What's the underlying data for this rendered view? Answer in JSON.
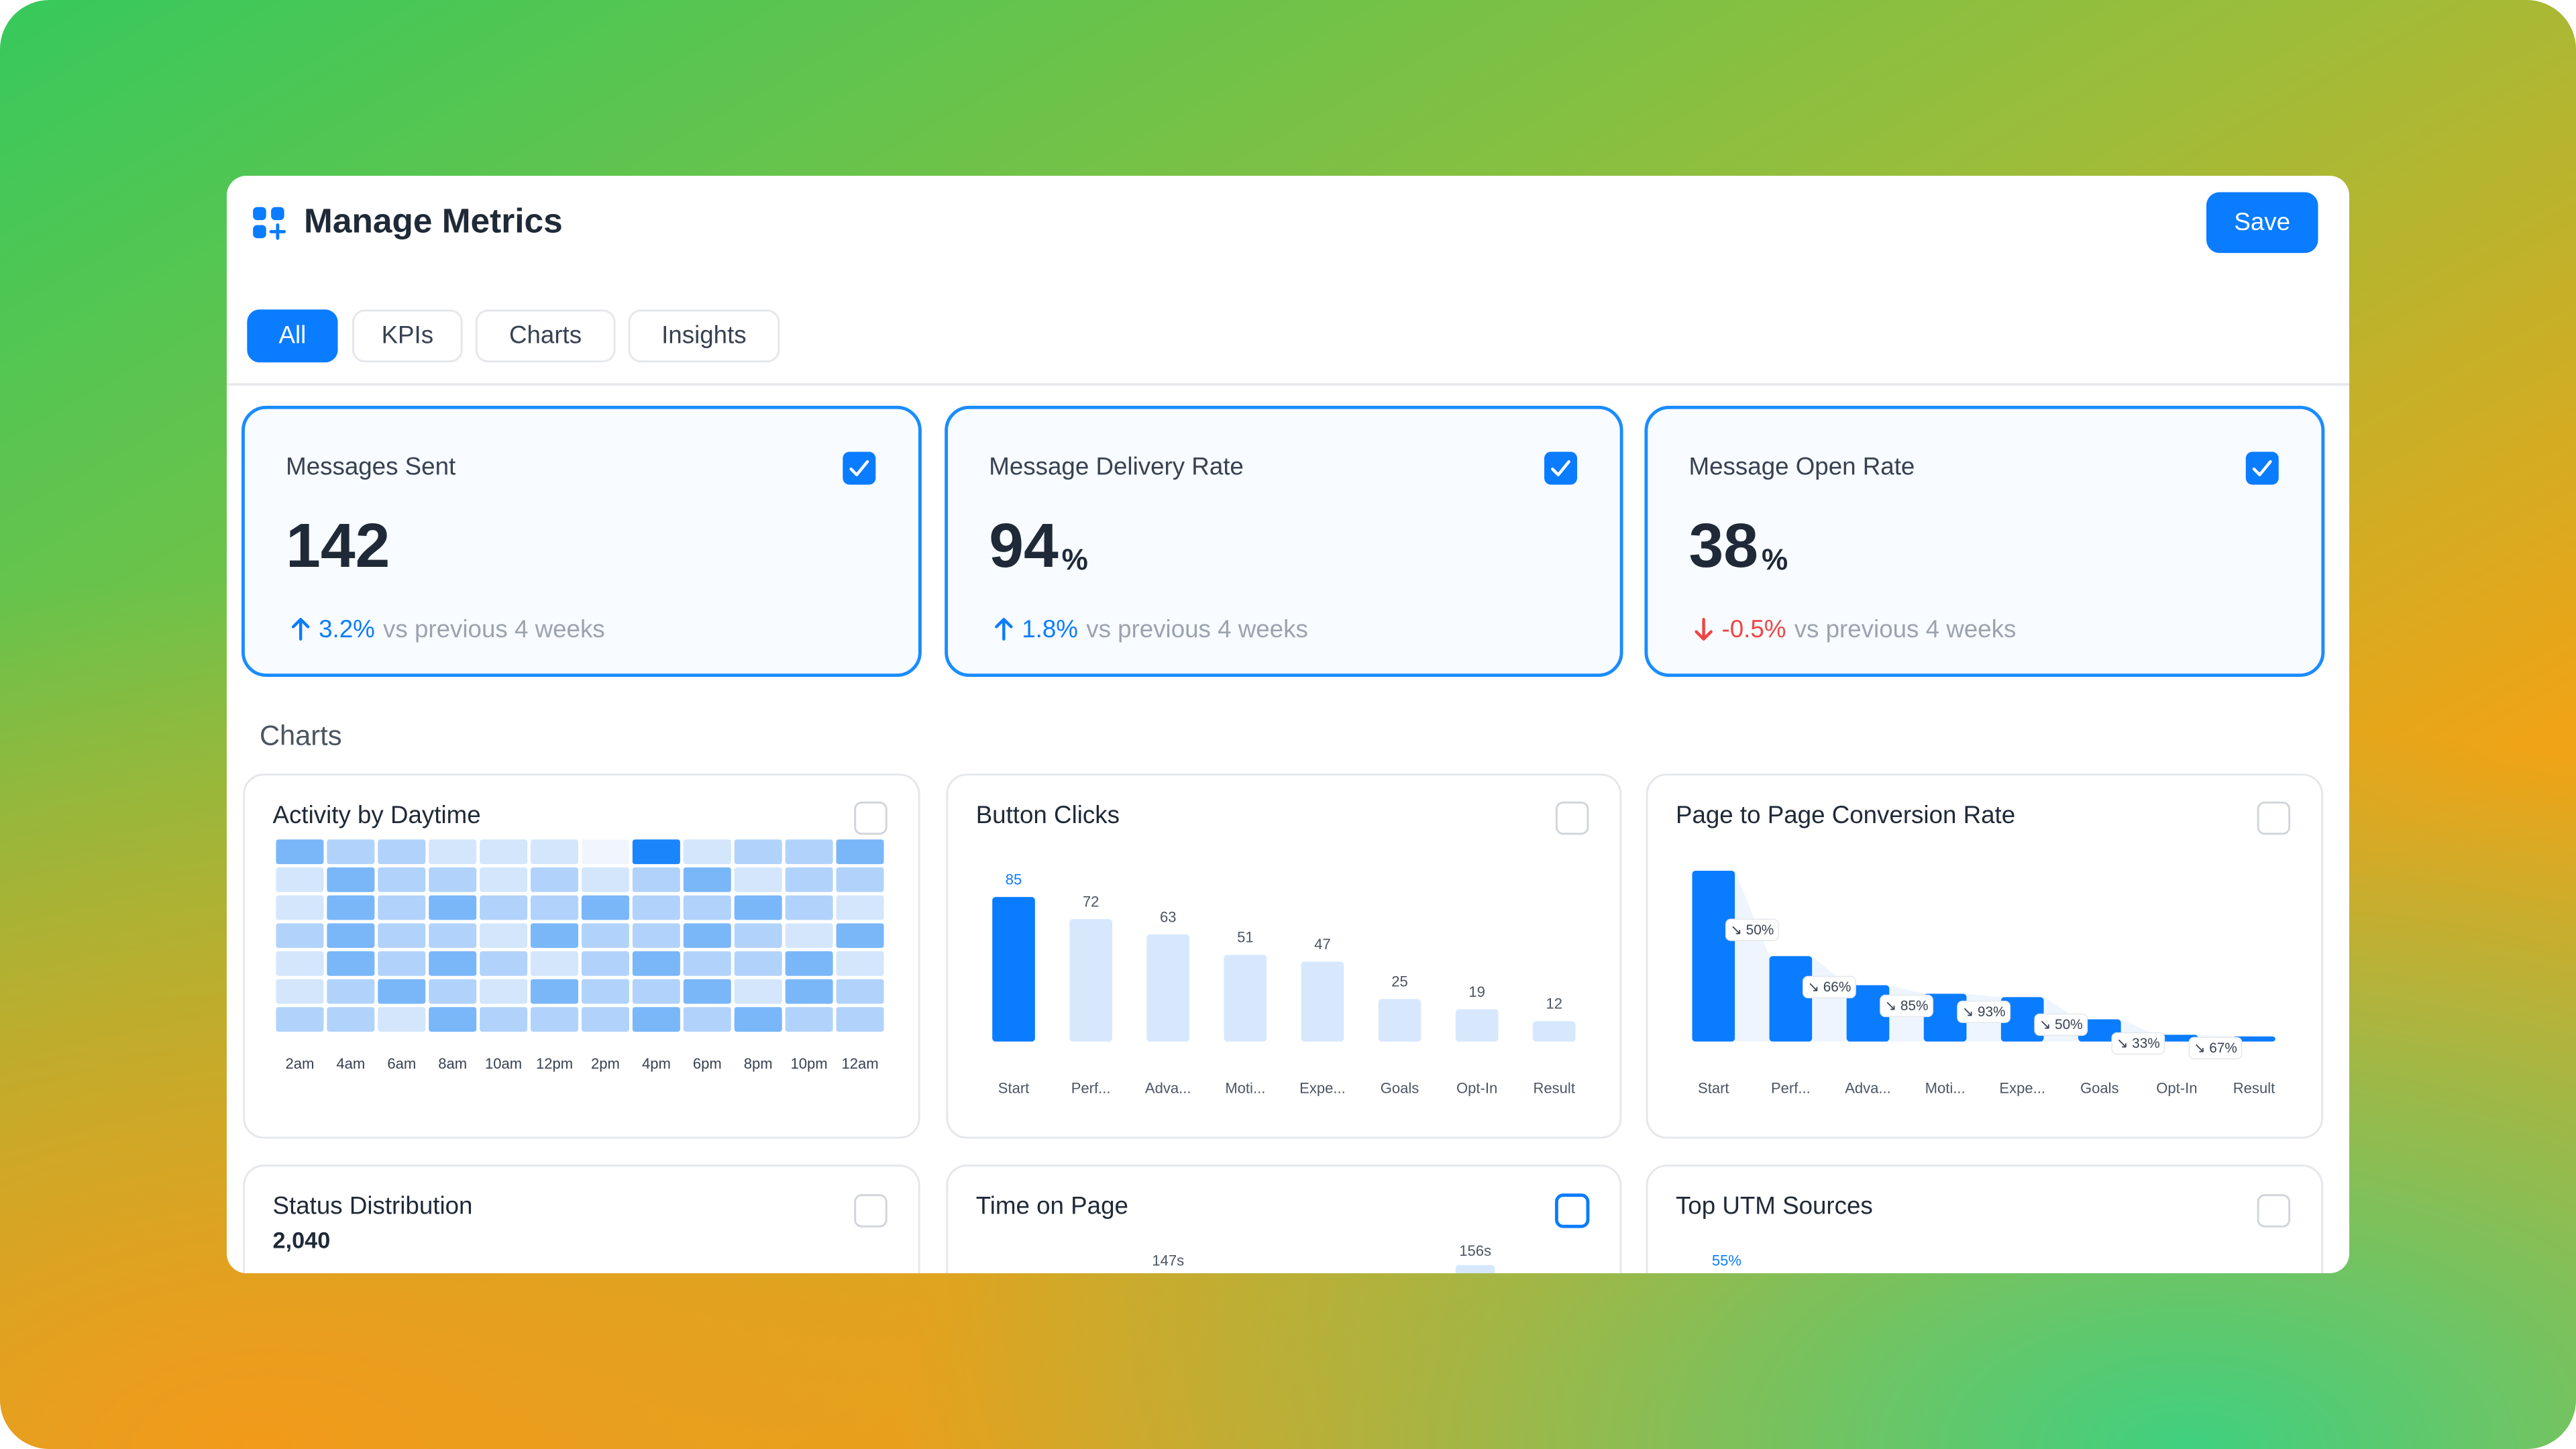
{
  "header": {
    "title": "Manage Metrics",
    "save": "Save"
  },
  "tabs": [
    "All",
    "KPIs",
    "Charts",
    "Insights"
  ],
  "active_tab": 0,
  "kpis": [
    {
      "title": "Messages Sent",
      "value": "142",
      "change": "3.2%",
      "trend": "up",
      "comparison": "vs previous 4 weeks",
      "checked": true
    },
    {
      "title": "Message Delivery Rate",
      "value": "94",
      "unit": "%",
      "change": "1.8%",
      "trend": "up",
      "comparison": "vs previous 4 weeks",
      "checked": true
    },
    {
      "title": "Message Open Rate",
      "value": "38",
      "unit": "%",
      "change": "-0.5%",
      "trend": "down",
      "comparison": "vs previous 4 weeks",
      "checked": true
    }
  ],
  "section_title": "Charts",
  "charts": [
    {
      "type": "heatmap",
      "title": "Activity by Daytime",
      "checked": false,
      "categories": [
        "2am",
        "4am",
        "6am",
        "8am",
        "10am",
        "12pm",
        "2pm",
        "4pm",
        "6pm",
        "8pm",
        "10pm",
        "12am"
      ],
      "colors": [
        "#f1f6fe",
        "#d3e6fc",
        "#b1d3fb",
        "#7ab7f9",
        "#1b86fb"
      ],
      "values": [
        [
          3,
          2,
          2,
          1,
          1,
          1,
          0,
          4,
          1,
          2,
          2,
          3
        ],
        [
          1,
          3,
          2,
          2,
          1,
          2,
          1,
          2,
          3,
          1,
          2,
          2
        ],
        [
          1,
          3,
          2,
          3,
          2,
          2,
          3,
          2,
          2,
          3,
          2,
          1
        ],
        [
          2,
          3,
          2,
          2,
          1,
          3,
          2,
          2,
          3,
          2,
          1,
          3
        ],
        [
          1,
          3,
          2,
          3,
          2,
          1,
          2,
          3,
          2,
          2,
          3,
          1
        ],
        [
          1,
          2,
          3,
          2,
          1,
          3,
          2,
          2,
          3,
          1,
          3,
          2
        ],
        [
          2,
          2,
          1,
          3,
          2,
          2,
          2,
          3,
          2,
          3,
          2,
          2
        ]
      ]
    },
    {
      "type": "bar",
      "title": "Button Clicks",
      "checked": false,
      "categories": [
        "Start",
        "Perf...",
        "Adva...",
        "Moti...",
        "Expe...",
        "Goals",
        "Opt-In",
        "Result"
      ],
      "values": [
        85,
        72,
        63,
        51,
        47,
        25,
        19,
        12
      ],
      "colors": [
        "#0a7cff",
        "#d7e8fd"
      ]
    },
    {
      "type": "funnel",
      "title": "Page to Page Conversion Rate",
      "checked": false,
      "categories": [
        "Start",
        "Perf...",
        "Adva...",
        "Moti...",
        "Expe...",
        "Goals",
        "Opt-In",
        "Result"
      ],
      "values": [
        100,
        50,
        33,
        28,
        26,
        13,
        4,
        3
      ],
      "rate_labels": [
        "↘ 50%",
        "↘ 66%",
        "↘ 85%",
        "↘ 93%",
        "↘ 50%",
        "↘ 33%",
        "↘ 67%"
      ],
      "color": "#0a7cff"
    }
  ],
  "partial_cards": [
    {
      "title": "Status Distribution",
      "total": "2,040",
      "checked": false
    },
    {
      "title": "Time on Page",
      "labels": [
        "147s",
        "156s"
      ],
      "checked": false,
      "focused": true
    },
    {
      "title": "Top UTM Sources",
      "labels": [
        "55%"
      ],
      "checked": false
    }
  ]
}
